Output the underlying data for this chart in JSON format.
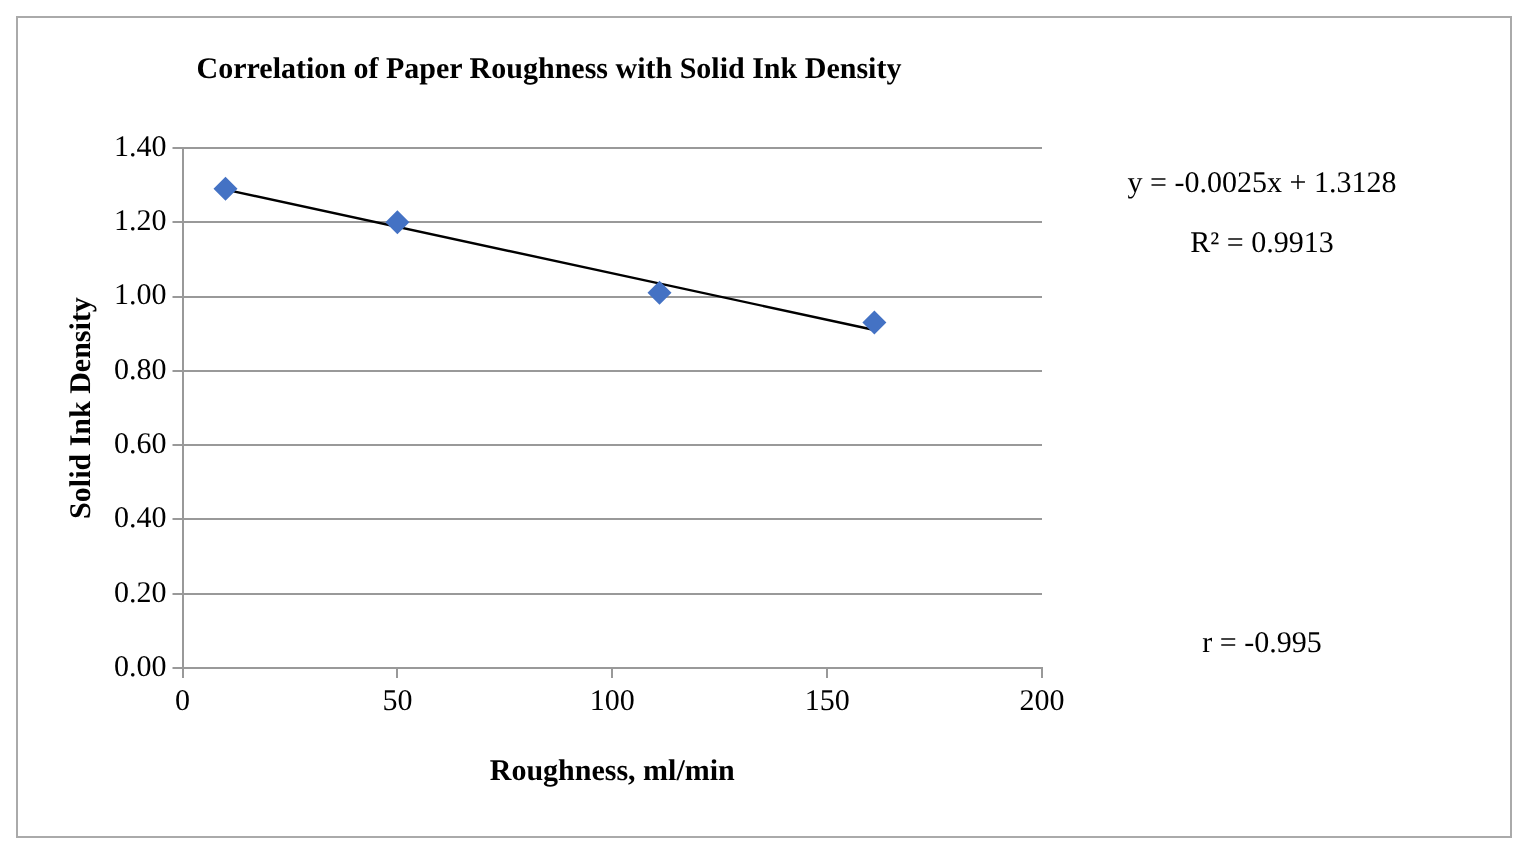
{
  "chart_data": {
    "type": "scatter",
    "title": "Correlation of Paper Roughness with Solid Ink Density",
    "xlabel": "Roughness, ml/min",
    "ylabel": "Solid Ink Density",
    "series": [
      {
        "type": "scatter",
        "color": "#4472c4",
        "marker": "diamond",
        "x": [
          10,
          50,
          111,
          161
        ],
        "values": [
          1.29,
          1.2,
          1.01,
          0.93
        ]
      },
      {
        "type": "line",
        "color": "#000000",
        "marker": "none",
        "x": [
          10,
          161
        ],
        "values": [
          1.288,
          0.91
        ]
      }
    ],
    "xlim": [
      0,
      200
    ],
    "xticks": [
      0,
      50,
      100,
      150,
      200
    ],
    "ylim": [
      0,
      1.4
    ],
    "yticks": [
      {
        "value": 0,
        "label": "0.00"
      },
      {
        "value": 0.2,
        "label": "0.20"
      },
      {
        "value": 0.4,
        "label": "0.40"
      },
      {
        "value": 0.6,
        "label": "0.60"
      },
      {
        "value": 0.8,
        "label": "0.80"
      },
      {
        "value": 1,
        "label": "1.00"
      },
      {
        "value": 1.2,
        "label": "1.20"
      },
      {
        "value": 1.4,
        "label": "1.40"
      }
    ],
    "grid": "y",
    "legend": false,
    "annotations": [
      "y = -0.0025x + 1.3128",
      "R² = 0.9913",
      "r = -0.995"
    ]
  }
}
